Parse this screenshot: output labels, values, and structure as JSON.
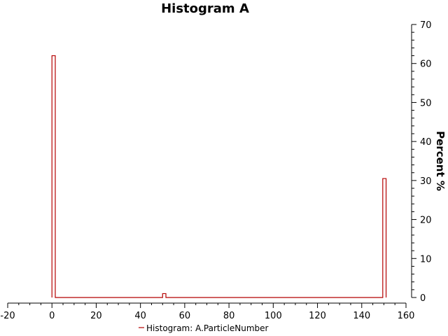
{
  "chart_data": {
    "type": "histogram",
    "title": "Histogram A",
    "xlabel": "",
    "ylabel": "Percent %",
    "xlim": [
      -20,
      160
    ],
    "ylim": [
      0,
      70
    ],
    "x_ticks": [
      -20,
      0,
      20,
      40,
      60,
      80,
      100,
      120,
      140,
      160
    ],
    "y_ticks": [
      0,
      10,
      20,
      30,
      40,
      50,
      60,
      70
    ],
    "y_axis_side": "right",
    "grid": false,
    "legend_position": "bottom-center",
    "series": [
      {
        "name": "Histogram: A.ParticleNumber",
        "color": "#b40000",
        "bins": [
          {
            "x0": 0,
            "x1": 1.5,
            "value": 62
          },
          {
            "x0": 1.5,
            "x1": 50,
            "value": 0
          },
          {
            "x0": 50,
            "x1": 51.5,
            "value": 1
          },
          {
            "x0": 51.5,
            "x1": 149.5,
            "value": 0
          },
          {
            "x0": 149.5,
            "x1": 151,
            "value": 30.5
          }
        ]
      }
    ]
  }
}
